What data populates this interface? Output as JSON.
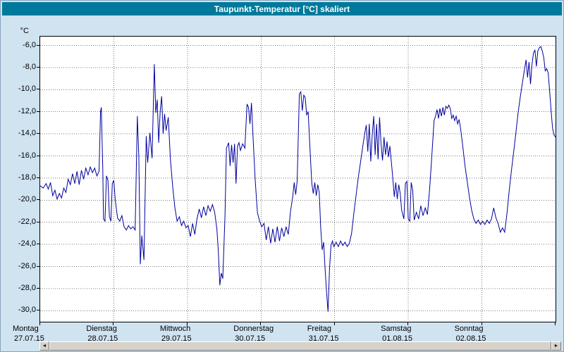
{
  "window": {
    "title": "Taupunkt-Temperatur [°C] skaliert"
  },
  "colors": {
    "titlebar_bg": "#007a9c",
    "window_bg": "#cfe3f1",
    "plot_bg": "#ffffff",
    "line": "#0000a0",
    "grid": "#7a7a7a",
    "frame": "#000000"
  },
  "scrollbar": {
    "left_arrow": "◄",
    "right_arrow": "►"
  },
  "chart_data": {
    "type": "line",
    "title": "Taupunkt-Temperatur [°C] skaliert",
    "ylabel": "°C",
    "ylim": [
      -31,
      -5.2
    ],
    "grid": "dotted",
    "x_range_days": [
      0,
      7
    ],
    "y_ticks": [
      {
        "value": -6,
        "label": "-6,0"
      },
      {
        "value": -8,
        "label": "-8,0"
      },
      {
        "value": -10,
        "label": "-10,0"
      },
      {
        "value": -12,
        "label": "-12,0"
      },
      {
        "value": -14,
        "label": "-14,0"
      },
      {
        "value": -16,
        "label": "-16,0"
      },
      {
        "value": -18,
        "label": "-18,0"
      },
      {
        "value": -20,
        "label": "-20,0"
      },
      {
        "value": -22,
        "label": "-22,0"
      },
      {
        "value": -24,
        "label": "-24,0"
      },
      {
        "value": -26,
        "label": "-26,0"
      },
      {
        "value": -28,
        "label": "-28,0"
      },
      {
        "value": -30,
        "label": "-30,0"
      }
    ],
    "x_days": [
      {
        "name": "Montag",
        "date": "27.07.15"
      },
      {
        "name": "Dienstag",
        "date": "28.07.15"
      },
      {
        "name": "Mittwoch",
        "date": "29.07.15"
      },
      {
        "name": "Donnerstag",
        "date": "30.07.15"
      },
      {
        "name": "Freitag",
        "date": "31.07.15"
      },
      {
        "name": "Samstag",
        "date": "01.08.15"
      },
      {
        "name": "Sonntag",
        "date": "02.08.15"
      }
    ],
    "series": [
      {
        "name": "Taupunkt-Temperatur",
        "color": "#0000a0",
        "points": [
          [
            0.0,
            -18.7
          ],
          [
            0.04,
            -18.9
          ],
          [
            0.08,
            -18.5
          ],
          [
            0.11,
            -19.0
          ],
          [
            0.14,
            -18.4
          ],
          [
            0.17,
            -19.6
          ],
          [
            0.2,
            -19.1
          ],
          [
            0.23,
            -19.9
          ],
          [
            0.26,
            -19.4
          ],
          [
            0.29,
            -19.8
          ],
          [
            0.32,
            -18.9
          ],
          [
            0.35,
            -19.3
          ],
          [
            0.38,
            -18.1
          ],
          [
            0.41,
            -18.6
          ],
          [
            0.44,
            -17.6
          ],
          [
            0.47,
            -18.5
          ],
          [
            0.5,
            -17.4
          ],
          [
            0.53,
            -18.6
          ],
          [
            0.56,
            -17.3
          ],
          [
            0.59,
            -18.1
          ],
          [
            0.62,
            -17.1
          ],
          [
            0.65,
            -17.7
          ],
          [
            0.68,
            -17.0
          ],
          [
            0.71,
            -17.5
          ],
          [
            0.74,
            -17.1
          ],
          [
            0.77,
            -17.8
          ],
          [
            0.8,
            -17.4
          ],
          [
            0.82,
            -12.0
          ],
          [
            0.83,
            -11.6
          ],
          [
            0.85,
            -17.2
          ],
          [
            0.86,
            -21.7
          ],
          [
            0.88,
            -21.9
          ],
          [
            0.9,
            -17.8
          ],
          [
            0.92,
            -18.2
          ],
          [
            0.94,
            -21.5
          ],
          [
            0.96,
            -21.9
          ],
          [
            0.98,
            -18.5
          ],
          [
            1.0,
            -18.2
          ],
          [
            1.02,
            -20.0
          ],
          [
            1.05,
            -21.6
          ],
          [
            1.08,
            -21.9
          ],
          [
            1.11,
            -21.4
          ],
          [
            1.14,
            -22.4
          ],
          [
            1.17,
            -22.7
          ],
          [
            1.2,
            -22.3
          ],
          [
            1.23,
            -22.6
          ],
          [
            1.26,
            -22.4
          ],
          [
            1.29,
            -22.7
          ],
          [
            1.32,
            -12.4
          ],
          [
            1.34,
            -16.0
          ],
          [
            1.36,
            -25.8
          ],
          [
            1.38,
            -23.2
          ],
          [
            1.41,
            -25.4
          ],
          [
            1.44,
            -14.2
          ],
          [
            1.46,
            -16.6
          ],
          [
            1.49,
            -13.9
          ],
          [
            1.52,
            -16.2
          ],
          [
            1.55,
            -7.7
          ],
          [
            1.57,
            -12.1
          ],
          [
            1.59,
            -10.9
          ],
          [
            1.61,
            -14.8
          ],
          [
            1.63,
            -12.0
          ],
          [
            1.65,
            -10.6
          ],
          [
            1.67,
            -14.0
          ],
          [
            1.69,
            -12.2
          ],
          [
            1.71,
            -13.7
          ],
          [
            1.74,
            -12.5
          ],
          [
            1.77,
            -16.4
          ],
          [
            1.8,
            -18.8
          ],
          [
            1.83,
            -20.7
          ],
          [
            1.86,
            -21.9
          ],
          [
            1.89,
            -21.5
          ],
          [
            1.92,
            -22.3
          ],
          [
            1.95,
            -21.9
          ],
          [
            1.98,
            -22.5
          ],
          [
            2.01,
            -22.3
          ],
          [
            2.04,
            -23.3
          ],
          [
            2.07,
            -22.1
          ],
          [
            2.1,
            -23.1
          ],
          [
            2.13,
            -21.7
          ],
          [
            2.16,
            -20.8
          ],
          [
            2.19,
            -21.6
          ],
          [
            2.22,
            -20.6
          ],
          [
            2.25,
            -21.4
          ],
          [
            2.28,
            -20.5
          ],
          [
            2.31,
            -21.0
          ],
          [
            2.34,
            -20.4
          ],
          [
            2.37,
            -21.1
          ],
          [
            2.4,
            -22.6
          ],
          [
            2.42,
            -24.6
          ],
          [
            2.44,
            -27.7
          ],
          [
            2.46,
            -26.6
          ],
          [
            2.48,
            -27.1
          ],
          [
            2.51,
            -21.5
          ],
          [
            2.53,
            -15.3
          ],
          [
            2.56,
            -14.8
          ],
          [
            2.58,
            -16.9
          ],
          [
            2.6,
            -15.0
          ],
          [
            2.62,
            -16.6
          ],
          [
            2.64,
            -14.9
          ],
          [
            2.66,
            -18.5
          ],
          [
            2.68,
            -15.1
          ],
          [
            2.7,
            -14.8
          ],
          [
            2.72,
            -15.5
          ],
          [
            2.75,
            -14.9
          ],
          [
            2.78,
            -15.3
          ],
          [
            2.81,
            -11.3
          ],
          [
            2.83,
            -11.6
          ],
          [
            2.85,
            -13.1
          ],
          [
            2.87,
            -11.2
          ],
          [
            2.89,
            -14.1
          ],
          [
            2.92,
            -18.1
          ],
          [
            2.95,
            -21.1
          ],
          [
            2.98,
            -21.9
          ],
          [
            3.01,
            -22.4
          ],
          [
            3.04,
            -22.1
          ],
          [
            3.07,
            -23.6
          ],
          [
            3.1,
            -22.4
          ],
          [
            3.13,
            -23.9
          ],
          [
            3.16,
            -22.6
          ],
          [
            3.19,
            -23.8
          ],
          [
            3.22,
            -22.4
          ],
          [
            3.25,
            -23.7
          ],
          [
            3.28,
            -22.5
          ],
          [
            3.31,
            -23.3
          ],
          [
            3.34,
            -22.4
          ],
          [
            3.37,
            -23.1
          ],
          [
            3.4,
            -21.0
          ],
          [
            3.43,
            -19.7
          ],
          [
            3.45,
            -18.4
          ],
          [
            3.47,
            -19.5
          ],
          [
            3.49,
            -18.3
          ],
          [
            3.52,
            -10.4
          ],
          [
            3.54,
            -10.2
          ],
          [
            3.56,
            -11.9
          ],
          [
            3.58,
            -10.5
          ],
          [
            3.6,
            -10.7
          ],
          [
            3.62,
            -12.3
          ],
          [
            3.64,
            -12.0
          ],
          [
            3.67,
            -16.1
          ],
          [
            3.69,
            -18.5
          ],
          [
            3.71,
            -19.4
          ],
          [
            3.73,
            -18.4
          ],
          [
            3.75,
            -19.6
          ],
          [
            3.77,
            -18.6
          ],
          [
            3.79,
            -19.3
          ],
          [
            3.81,
            -22.5
          ],
          [
            3.83,
            -24.5
          ],
          [
            3.85,
            -23.8
          ],
          [
            3.87,
            -26.2
          ],
          [
            3.89,
            -28.3
          ],
          [
            3.91,
            -30.1
          ],
          [
            3.93,
            -26.2
          ],
          [
            3.95,
            -24.1
          ],
          [
            3.97,
            -23.7
          ],
          [
            3.99,
            -24.2
          ],
          [
            4.02,
            -23.8
          ],
          [
            4.05,
            -24.2
          ],
          [
            4.08,
            -23.7
          ],
          [
            4.11,
            -24.1
          ],
          [
            4.14,
            -23.8
          ],
          [
            4.17,
            -24.2
          ],
          [
            4.2,
            -23.9
          ],
          [
            4.23,
            -23.0
          ],
          [
            4.26,
            -21.2
          ],
          [
            4.29,
            -19.6
          ],
          [
            4.32,
            -18.0
          ],
          [
            4.35,
            -16.6
          ],
          [
            4.38,
            -15.2
          ],
          [
            4.41,
            -13.9
          ],
          [
            4.43,
            -13.2
          ],
          [
            4.45,
            -15.6
          ],
          [
            4.47,
            -13.1
          ],
          [
            4.49,
            -16.5
          ],
          [
            4.51,
            -14.1
          ],
          [
            4.53,
            -12.4
          ],
          [
            4.55,
            -15.9
          ],
          [
            4.57,
            -13.1
          ],
          [
            4.59,
            -16.3
          ],
          [
            4.61,
            -12.5
          ],
          [
            4.63,
            -14.9
          ],
          [
            4.65,
            -16.4
          ],
          [
            4.67,
            -14.3
          ],
          [
            4.69,
            -15.9
          ],
          [
            4.71,
            -14.7
          ],
          [
            4.73,
            -16.1
          ],
          [
            4.75,
            -15.1
          ],
          [
            4.78,
            -17.3
          ],
          [
            4.81,
            -19.7
          ],
          [
            4.83,
            -18.4
          ],
          [
            4.85,
            -19.9
          ],
          [
            4.87,
            -18.6
          ],
          [
            4.89,
            -19.4
          ],
          [
            4.91,
            -20.9
          ],
          [
            4.94,
            -21.7
          ],
          [
            4.96,
            -18.5
          ],
          [
            4.98,
            -18.3
          ],
          [
            5.0,
            -21.7
          ],
          [
            5.02,
            -21.9
          ],
          [
            5.04,
            -18.4
          ],
          [
            5.06,
            -19.1
          ],
          [
            5.08,
            -21.8
          ],
          [
            5.11,
            -21.1
          ],
          [
            5.14,
            -21.7
          ],
          [
            5.17,
            -20.5
          ],
          [
            5.2,
            -21.4
          ],
          [
            5.23,
            -20.7
          ],
          [
            5.26,
            -21.3
          ],
          [
            5.29,
            -19.0
          ],
          [
            5.31,
            -17.0
          ],
          [
            5.33,
            -14.9
          ],
          [
            5.35,
            -12.8
          ],
          [
            5.37,
            -12.4
          ],
          [
            5.39,
            -11.8
          ],
          [
            5.41,
            -12.6
          ],
          [
            5.43,
            -11.7
          ],
          [
            5.45,
            -12.4
          ],
          [
            5.47,
            -11.6
          ],
          [
            5.49,
            -12.3
          ],
          [
            5.51,
            -11.5
          ],
          [
            5.53,
            -11.7
          ],
          [
            5.55,
            -11.4
          ],
          [
            5.57,
            -11.7
          ],
          [
            5.59,
            -12.6
          ],
          [
            5.61,
            -12.3
          ],
          [
            5.63,
            -12.8
          ],
          [
            5.65,
            -12.4
          ],
          [
            5.67,
            -13.1
          ],
          [
            5.69,
            -12.7
          ],
          [
            5.71,
            -13.5
          ],
          [
            5.74,
            -15.1
          ],
          [
            5.77,
            -16.9
          ],
          [
            5.8,
            -18.3
          ],
          [
            5.83,
            -19.7
          ],
          [
            5.86,
            -20.9
          ],
          [
            5.89,
            -21.7
          ],
          [
            5.92,
            -22.1
          ],
          [
            5.95,
            -21.8
          ],
          [
            5.98,
            -22.2
          ],
          [
            6.01,
            -21.9
          ],
          [
            6.04,
            -22.2
          ],
          [
            6.07,
            -21.8
          ],
          [
            6.1,
            -22.1
          ],
          [
            6.13,
            -21.7
          ],
          [
            6.16,
            -20.7
          ],
          [
            6.19,
            -21.6
          ],
          [
            6.22,
            -22.1
          ],
          [
            6.25,
            -22.9
          ],
          [
            6.28,
            -22.5
          ],
          [
            6.31,
            -22.9
          ],
          [
            6.34,
            -21.2
          ],
          [
            6.37,
            -19.2
          ],
          [
            6.4,
            -17.4
          ],
          [
            6.43,
            -15.7
          ],
          [
            6.46,
            -14.0
          ],
          [
            6.49,
            -12.2
          ],
          [
            6.52,
            -10.7
          ],
          [
            6.55,
            -9.4
          ],
          [
            6.58,
            -8.1
          ],
          [
            6.6,
            -7.3
          ],
          [
            6.62,
            -8.9
          ],
          [
            6.64,
            -7.5
          ],
          [
            6.66,
            -9.5
          ],
          [
            6.68,
            -7.7
          ],
          [
            6.7,
            -6.7
          ],
          [
            6.72,
            -6.4
          ],
          [
            6.74,
            -7.9
          ],
          [
            6.76,
            -6.5
          ],
          [
            6.78,
            -6.2
          ],
          [
            6.8,
            -6.1
          ],
          [
            6.82,
            -6.5
          ],
          [
            6.84,
            -7.1
          ],
          [
            6.86,
            -8.3
          ],
          [
            6.88,
            -8.1
          ],
          [
            6.9,
            -8.5
          ],
          [
            6.92,
            -10.1
          ],
          [
            6.94,
            -11.9
          ],
          [
            6.96,
            -13.5
          ],
          [
            6.98,
            -14.1
          ],
          [
            7.0,
            -14.3
          ]
        ]
      }
    ]
  }
}
